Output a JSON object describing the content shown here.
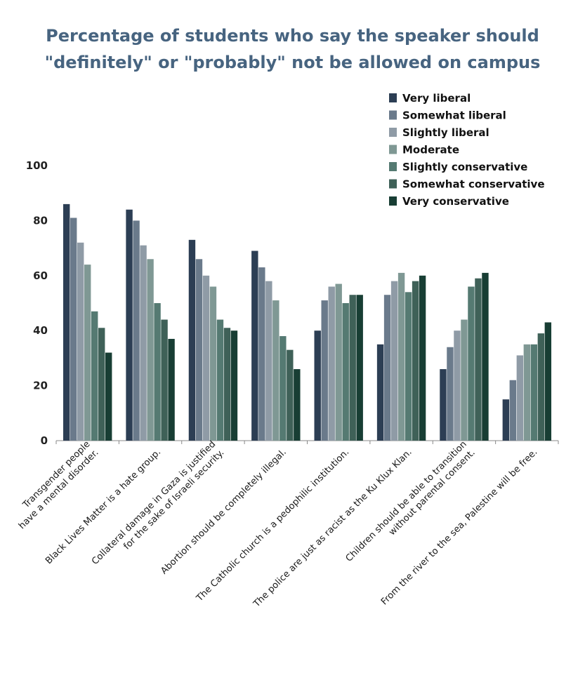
{
  "chart_data": {
    "type": "bar",
    "title_lines": [
      "Percentage of students who say the speaker should",
      "\"definitely\" or \"probably\" not be allowed on campus"
    ],
    "xlabel": "",
    "ylabel": "",
    "ylim": [
      0,
      100
    ],
    "yticks": [
      "0",
      "20",
      "40",
      "60",
      "80",
      "100"
    ],
    "legend_position": "top-right",
    "grid": false,
    "categories": [
      [
        "Transgender people",
        "have a mental disorder."
      ],
      [
        "Black Lives Matter is a hate group."
      ],
      [
        "Collateral damage in Gaza is justified",
        "for the sake of Israeli security."
      ],
      [
        "Abortion should be completely illegal."
      ],
      [
        "The Catholic church is a pedophilic institution."
      ],
      [
        "The police are just as racist as the Ku Klux Klan."
      ],
      [
        "Children should be able to transition",
        "without parental consent."
      ],
      [
        "From the river to the sea, Palestine will be free."
      ]
    ],
    "series": [
      {
        "name": "Very liberal",
        "color": "#2c3e54",
        "values": [
          86,
          84,
          73,
          69,
          40,
          35,
          26,
          15
        ]
      },
      {
        "name": "Somewhat liberal",
        "color": "#6a7a8b",
        "values": [
          81,
          80,
          66,
          63,
          51,
          53,
          34,
          22
        ]
      },
      {
        "name": "Slightly liberal",
        "color": "#8f9ba6",
        "values": [
          72,
          71,
          60,
          58,
          56,
          58,
          40,
          31
        ]
      },
      {
        "name": "Moderate",
        "color": "#7f9894",
        "values": [
          64,
          66,
          56,
          51,
          57,
          61,
          44,
          35
        ]
      },
      {
        "name": "Slightly conservative",
        "color": "#557a72",
        "values": [
          47,
          50,
          44,
          38,
          50,
          54,
          56,
          35
        ]
      },
      {
        "name": "Somewhat conservative",
        "color": "#3f6158",
        "values": [
          41,
          44,
          41,
          33,
          53,
          58,
          59,
          39
        ]
      },
      {
        "name": "Very conservative",
        "color": "#183e34",
        "values": [
          32,
          37,
          40,
          26,
          53,
          60,
          61,
          43
        ]
      }
    ]
  }
}
